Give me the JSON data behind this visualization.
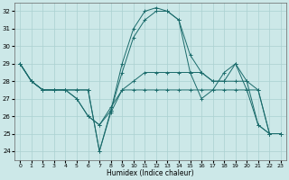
{
  "xlabel": "Humidex (Indice chaleur)",
  "xlim": [
    -0.5,
    23.5
  ],
  "ylim": [
    23.5,
    32.5
  ],
  "yticks": [
    24,
    25,
    26,
    27,
    28,
    29,
    30,
    31,
    32
  ],
  "xticks": [
    0,
    1,
    2,
    3,
    4,
    5,
    6,
    7,
    8,
    9,
    10,
    11,
    12,
    13,
    14,
    15,
    16,
    17,
    18,
    19,
    20,
    21,
    22,
    23
  ],
  "background_color": "#cce8e8",
  "grid_color": "#aad0d0",
  "line_color": "#1a6b6b",
  "series": [
    [
      29,
      28,
      27.5,
      27.5,
      27.5,
      27.5,
      27.5,
      24,
      26.2,
      27.5,
      27.5,
      27.5,
      27.5,
      27.5,
      27.5,
      27.5,
      27.5,
      27.5,
      27.5,
      27.5,
      27.5,
      27.5,
      25,
      25
    ],
    [
      29,
      28,
      27.5,
      27.5,
      27.5,
      27.5,
      27.5,
      24,
      26.3,
      29.0,
      31.0,
      32.0,
      32.2,
      32.0,
      31.5,
      28.5,
      27.0,
      27.5,
      28.5,
      29.0,
      27.5,
      25.5,
      25,
      25
    ],
    [
      29,
      28,
      27.5,
      27.5,
      27.5,
      27.0,
      26.0,
      25.5,
      26.5,
      27.5,
      28.0,
      28.5,
      28.5,
      28.5,
      28.5,
      28.5,
      28.5,
      28.0,
      28.0,
      28.0,
      28.0,
      27.5,
      25,
      25
    ],
    [
      29,
      28,
      27.5,
      27.5,
      27.5,
      27.0,
      26.0,
      25.5,
      26.3,
      28.5,
      30.5,
      31.5,
      32.0,
      32.0,
      31.5,
      29.5,
      28.5,
      28.0,
      28.0,
      29.0,
      28.0,
      25.5,
      25,
      25
    ]
  ],
  "figsize": [
    3.2,
    2.0
  ],
  "dpi": 100
}
